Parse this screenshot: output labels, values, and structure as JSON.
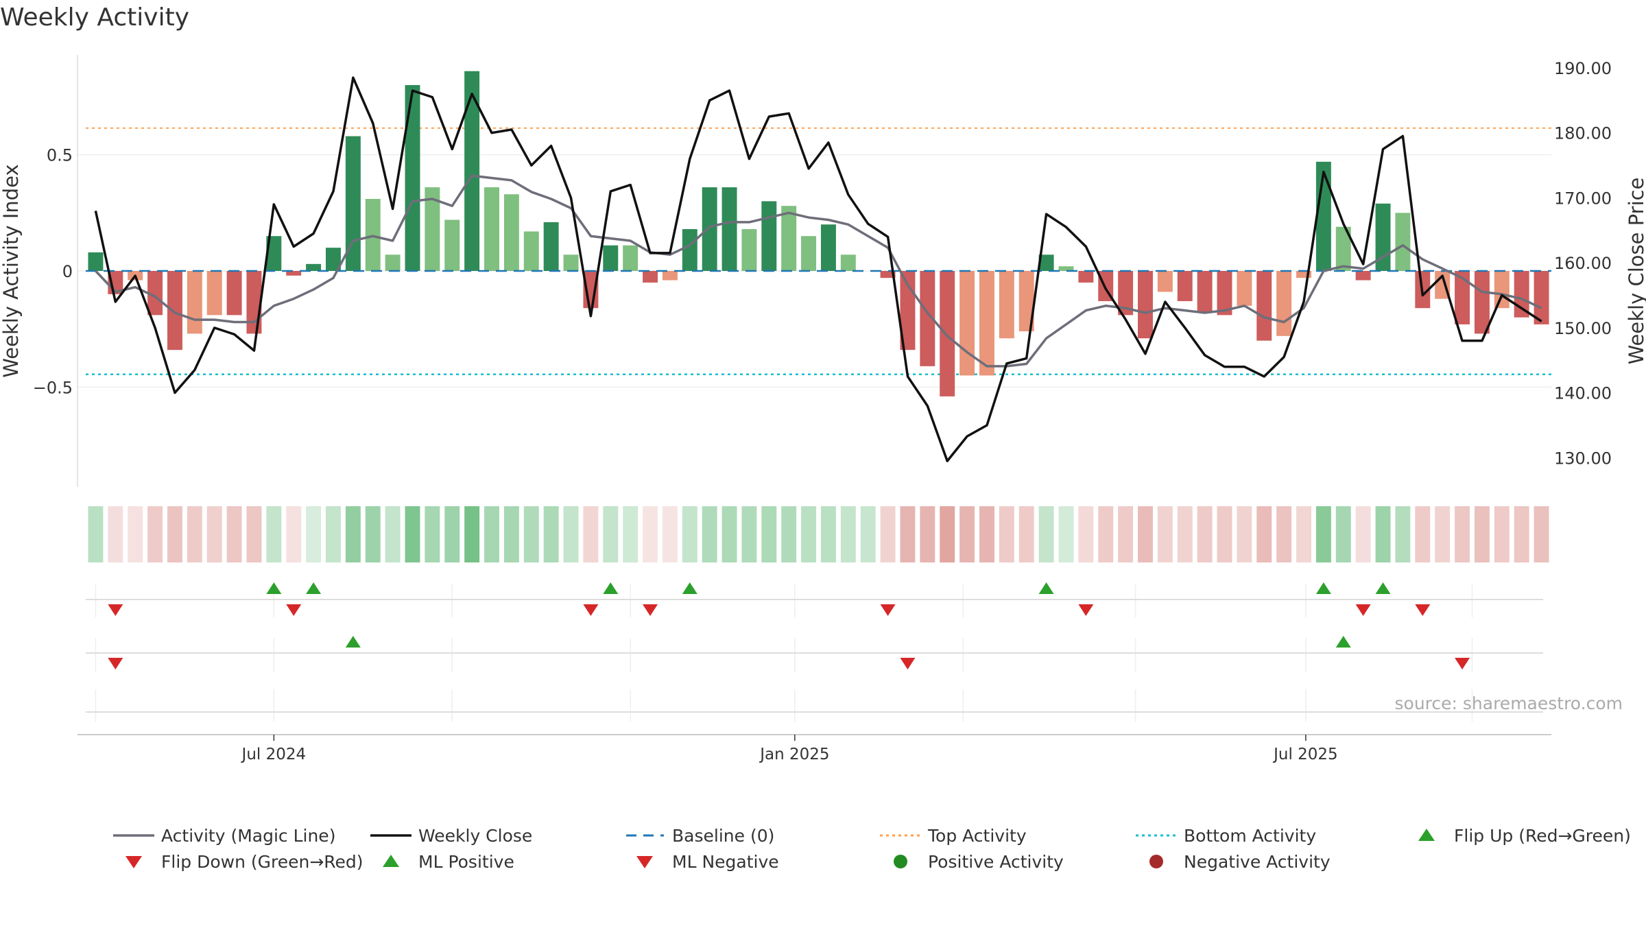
{
  "page": {
    "title": "Weekly Activity"
  },
  "chart_data": {
    "type": "bar",
    "title": "Weekly Activity",
    "watermark": "source: sharemaestro.com",
    "x_axis": {
      "ticks": [
        "Jul 2024",
        "Jan 2025",
        "Jul 2025"
      ],
      "tick_positions": [
        9.5,
        35.8,
        61.6
      ]
    },
    "y_left": {
      "label": "Weekly Activity Index",
      "ticks": [
        0.5,
        0,
        -0.5
      ],
      "tick_labels": [
        "0.5",
        "0",
        "−0.5"
      ],
      "range": [
        -0.93,
        0.93
      ]
    },
    "y_right": {
      "label": "Weekly Close Price",
      "ticks": [
        190,
        180,
        170,
        160,
        150,
        140,
        130
      ],
      "tick_labels": [
        "190.00",
        "180.00",
        "170.00",
        "160.00",
        "150.00",
        "140.00",
        "130.00"
      ],
      "range": [
        125.5,
        192
      ]
    },
    "reference_lines": {
      "baseline": 0,
      "top_activity": 0.615,
      "bottom_activity": -0.445
    },
    "colors": {
      "strong_pos": "#2e8b57",
      "weak_pos": "#7fbf7f",
      "strong_neg": "#cd5c5c",
      "weak_neg": "#e9967a",
      "magic_line": "#6e6e7a",
      "close_line": "#111111",
      "baseline": "#1f77b4",
      "top_activity": "#ff9f4a",
      "bottom_activity": "#17becf",
      "flip_up": "#2ca02c",
      "flip_down": "#d62728",
      "positive_dot": "#228b22",
      "negative_dot": "#a52a2a",
      "heat_pos": "#3aa654",
      "heat_neg": "#cd6b63"
    },
    "series": [
      {
        "name": "Weekly Activity",
        "kind": "bars",
        "values": [
          0.08,
          -0.1,
          -0.04,
          -0.19,
          -0.34,
          -0.27,
          -0.19,
          -0.19,
          -0.27,
          0.15,
          -0.02,
          0.03,
          0.1,
          0.58,
          0.31,
          0.07,
          0.8,
          0.36,
          0.22,
          0.86,
          0.36,
          0.33,
          0.17,
          0.21,
          0.07,
          -0.16,
          0.11,
          0.11,
          -0.05,
          -0.04,
          0.18,
          0.36,
          0.36,
          0.18,
          0.3,
          0.28,
          0.15,
          0.2,
          0.07,
          0.0,
          -0.03,
          -0.34,
          -0.41,
          -0.54,
          -0.45,
          -0.45,
          -0.29,
          -0.26,
          0.07,
          0.02,
          -0.05,
          -0.13,
          -0.19,
          -0.29,
          -0.09,
          -0.13,
          -0.18,
          -0.19,
          -0.15,
          -0.3,
          -0.28,
          -0.03,
          0.47,
          0.19,
          -0.04,
          0.29,
          0.25,
          -0.16,
          -0.12,
          -0.23,
          -0.27,
          -0.16,
          -0.2,
          -0.23
        ],
        "strength": [
          1,
          1,
          0,
          1,
          1,
          0,
          0,
          1,
          1,
          1,
          1,
          1,
          1,
          1,
          0,
          0,
          1,
          0,
          0,
          1,
          0,
          0,
          0,
          1,
          0,
          1,
          1,
          0,
          1,
          0,
          1,
          1,
          1,
          0,
          1,
          0,
          0,
          1,
          0,
          0,
          1,
          1,
          1,
          1,
          0,
          0,
          0,
          0,
          1,
          0,
          1,
          1,
          1,
          1,
          0,
          1,
          1,
          1,
          0,
          1,
          0,
          0,
          1,
          0,
          1,
          1,
          0,
          1,
          0,
          1,
          1,
          0,
          1,
          1
        ]
      },
      {
        "name": "Activity (Magic Line)",
        "values": [
          0.0,
          -0.09,
          -0.07,
          -0.11,
          -0.18,
          -0.21,
          -0.21,
          -0.22,
          -0.22,
          -0.15,
          -0.12,
          -0.08,
          -0.03,
          0.13,
          0.15,
          0.13,
          0.3,
          0.31,
          0.28,
          0.41,
          0.4,
          0.39,
          0.34,
          0.31,
          0.27,
          0.15,
          0.14,
          0.13,
          0.08,
          0.07,
          0.11,
          0.19,
          0.21,
          0.21,
          0.23,
          0.25,
          0.23,
          0.22,
          0.2,
          0.15,
          0.1,
          -0.06,
          -0.18,
          -0.28,
          -0.35,
          -0.41,
          -0.41,
          -0.4,
          -0.29,
          -0.23,
          -0.17,
          -0.15,
          -0.16,
          -0.18,
          -0.16,
          -0.17,
          -0.18,
          -0.17,
          -0.15,
          -0.2,
          -0.22,
          -0.16,
          0.0,
          0.02,
          0.01,
          0.06,
          0.11,
          0.05,
          0.01,
          -0.03,
          -0.09,
          -0.1,
          -0.12,
          -0.16
        ]
      },
      {
        "name": "Weekly Close",
        "axis": "right",
        "values": [
          168,
          154,
          158,
          150,
          140,
          143.5,
          150,
          149,
          146.5,
          169,
          162.5,
          164.5,
          171,
          188.5,
          181.5,
          168.3,
          186.5,
          185.5,
          177.5,
          186,
          180,
          180.5,
          175,
          178,
          170,
          151.8,
          171,
          172,
          161.5,
          161.5,
          176,
          185,
          186.5,
          176,
          182.5,
          183,
          174.5,
          178.5,
          170.5,
          166,
          164,
          142.5,
          138,
          129.5,
          133.3,
          135,
          144.5,
          145.3,
          167.5,
          165.5,
          162.5,
          156,
          151.3,
          146,
          154,
          150,
          145.8,
          144,
          144,
          142.5,
          145.5,
          154,
          174,
          166,
          159.8,
          177.5,
          179.5,
          155,
          158,
          148,
          148,
          155,
          153,
          151
        ]
      }
    ],
    "heatmap_strip": [
      0.35,
      -0.22,
      -0.2,
      -0.35,
      -0.4,
      -0.35,
      -0.32,
      -0.38,
      -0.38,
      0.3,
      -0.2,
      0.2,
      0.3,
      0.55,
      0.5,
      0.3,
      0.65,
      0.45,
      0.5,
      0.7,
      0.45,
      0.45,
      0.4,
      0.42,
      0.3,
      -0.28,
      0.3,
      0.25,
      -0.18,
      -0.18,
      0.3,
      0.4,
      0.42,
      0.4,
      0.42,
      0.4,
      0.35,
      0.35,
      0.3,
      0.28,
      -0.3,
      -0.5,
      -0.5,
      -0.6,
      -0.5,
      -0.5,
      -0.35,
      -0.35,
      0.3,
      0.22,
      -0.25,
      -0.35,
      -0.35,
      -0.45,
      -0.3,
      -0.3,
      -0.35,
      -0.35,
      -0.3,
      -0.45,
      -0.4,
      -0.28,
      0.6,
      0.45,
      -0.22,
      0.5,
      0.38,
      -0.35,
      -0.3,
      -0.38,
      -0.42,
      -0.35,
      -0.38,
      -0.42
    ],
    "markers": {
      "row1_up": [
        9,
        11,
        26,
        30,
        48,
        62,
        65
      ],
      "row1_down": [
        1,
        10,
        25,
        28,
        40,
        50,
        64,
        67
      ],
      "row2_up": [
        13,
        63
      ],
      "row2_down": [
        1,
        41,
        69
      ]
    },
    "legend": [
      {
        "label": "Activity (Magic Line)",
        "symbol": "line",
        "color": "#6e6e7a"
      },
      {
        "label": "Weekly Close",
        "symbol": "line",
        "color": "#111111"
      },
      {
        "label": "Baseline (0)",
        "symbol": "dash",
        "color": "#1f77b4"
      },
      {
        "label": "Top Activity",
        "symbol": "dot-line",
        "color": "#ff9f4a"
      },
      {
        "label": "Bottom Activity",
        "symbol": "dot-line",
        "color": "#17becf"
      },
      {
        "label": "Flip Up (Red→Green)",
        "symbol": "triangle-up",
        "color": "#2ca02c"
      },
      {
        "label": "Flip Down (Green→Red)",
        "symbol": "triangle-down",
        "color": "#d62728"
      },
      {
        "label": "ML Positive",
        "symbol": "triangle-up",
        "color": "#2ca02c"
      },
      {
        "label": "ML Negative",
        "symbol": "triangle-down",
        "color": "#d62728"
      },
      {
        "label": "Positive Activity",
        "symbol": "circle",
        "color": "#228b22"
      },
      {
        "label": "Negative Activity",
        "symbol": "circle",
        "color": "#a52a2a"
      }
    ]
  }
}
